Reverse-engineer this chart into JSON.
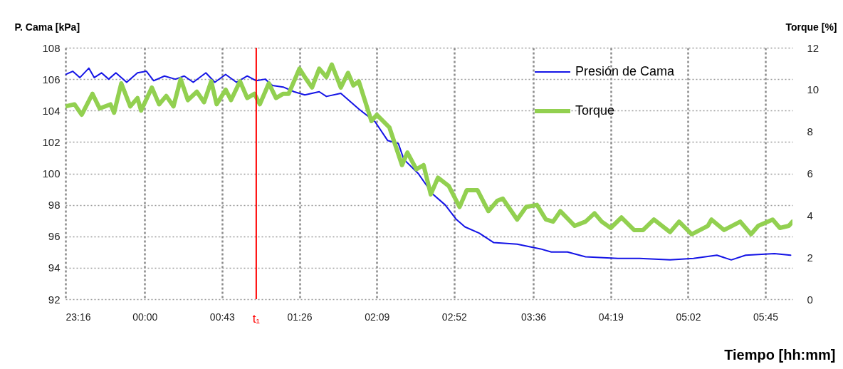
{
  "chart_data": {
    "type": "line",
    "xlabel": "Tiempo [hh:mm]",
    "ylabel": "P. Cama [kPa]",
    "y2label": "Torque [%]",
    "xlim": [
      "2000-01-01T23:16",
      "2000-01-02T06:00"
    ],
    "xticks": [
      {
        "value": "2000-01-01T23:16",
        "label": "23:16"
      },
      {
        "value": "2000-01-02T00:00",
        "label": "00:00"
      },
      {
        "value": "2000-01-02T00:43",
        "label": "00:43"
      },
      {
        "value": "2000-01-02T01:26",
        "label": "01:26"
      },
      {
        "value": "2000-01-02T02:09",
        "label": "02:09"
      },
      {
        "value": "2000-01-02T02:52",
        "label": "02:52"
      },
      {
        "value": "2000-01-02T03:36",
        "label": "03:36"
      },
      {
        "value": "2000-01-02T04:19",
        "label": "04:19"
      },
      {
        "value": "2000-01-02T05:02",
        "label": "05:02"
      },
      {
        "value": "2000-01-02T05:45",
        "label": "05:45"
      }
    ],
    "ylim": [
      92,
      108
    ],
    "yticks": [
      92,
      94,
      96,
      98,
      100,
      102,
      104,
      106,
      108
    ],
    "y2lim": [
      0,
      12
    ],
    "y2ticks": [
      0,
      2,
      4,
      6,
      8,
      10,
      12
    ],
    "grid": true,
    "legend": "top right",
    "line_style": "solid",
    "ref_lines": [
      {
        "axis": "x",
        "value": "2000-01-02T01:02",
        "label": "t₁",
        "color": "#ff0000"
      }
    ],
    "series": [
      {
        "name": "Presión de Cama",
        "color": "#1414e6",
        "x": [
          "2000-01-01T23:16",
          "2000-01-01T23:20",
          "2000-01-01T23:24",
          "2000-01-01T23:29",
          "2000-01-01T23:32",
          "2000-01-01T23:36",
          "2000-01-01T23:40",
          "2000-01-01T23:44",
          "2000-01-01T23:50",
          "2000-01-01T23:56",
          "2000-01-02T00:01",
          "2000-01-02T00:05",
          "2000-01-02T00:11",
          "2000-01-02T00:17",
          "2000-01-02T00:22",
          "2000-01-02T00:27",
          "2000-01-02T00:34",
          "2000-01-02T00:39",
          "2000-01-02T00:45",
          "2000-01-02T00:51",
          "2000-01-02T00:57",
          "2000-01-02T01:02",
          "2000-01-02T01:07",
          "2000-01-02T01:11",
          "2000-01-02T01:17",
          "2000-01-02T01:23",
          "2000-01-02T01:26",
          "2000-01-02T01:29",
          "2000-01-02T01:37",
          "2000-01-02T01:41",
          "2000-01-02T01:49",
          "2000-01-02T01:59",
          "2000-01-02T02:08",
          "2000-01-02T02:15",
          "2000-01-02T02:21",
          "2000-01-02T02:24",
          "2000-01-02T02:32",
          "2000-01-02T02:40",
          "2000-01-02T02:47",
          "2000-01-02T02:53",
          "2000-01-02T02:58",
          "2000-01-02T03:06",
          "2000-01-02T03:14",
          "2000-01-02T03:27",
          "2000-01-02T03:40",
          "2000-01-02T03:46",
          "2000-01-02T03:55",
          "2000-01-02T04:05",
          "2000-01-02T04:23",
          "2000-01-02T04:35",
          "2000-01-02T04:52",
          "2000-01-02T05:05",
          "2000-01-02T05:18",
          "2000-01-02T05:26",
          "2000-01-02T05:34",
          "2000-01-02T05:50",
          "2000-01-02T05:59"
        ],
        "values": [
          106.3,
          106.5,
          106.1,
          106.7,
          106.1,
          106.4,
          106.0,
          106.4,
          105.8,
          106.4,
          106.5,
          105.9,
          106.2,
          106.0,
          106.2,
          105.8,
          106.4,
          105.8,
          106.3,
          105.8,
          106.2,
          105.9,
          106.0,
          105.6,
          105.5,
          105.2,
          105.1,
          105.0,
          105.2,
          104.9,
          105.1,
          104.1,
          103.3,
          102.1,
          101.9,
          100.9,
          100.0,
          98.7,
          98.0,
          97.1,
          96.6,
          96.2,
          95.6,
          95.5,
          95.2,
          95.0,
          95.0,
          94.7,
          94.6,
          94.6,
          94.5,
          94.6,
          94.8,
          94.5,
          94.8,
          94.9,
          94.8
        ]
      },
      {
        "name": "Torque",
        "color": "#92d050",
        "axis": "y2",
        "x": [
          "2000-01-01T23:16",
          "2000-01-01T23:21",
          "2000-01-01T23:25",
          "2000-01-01T23:31",
          "2000-01-01T23:35",
          "2000-01-01T23:41",
          "2000-01-01T23:43",
          "2000-01-01T23:47",
          "2000-01-01T23:52",
          "2000-01-01T23:56",
          "2000-01-01T23:58",
          "2000-01-02T00:04",
          "2000-01-02T00:08",
          "2000-01-02T00:12",
          "2000-01-02T00:16",
          "2000-01-02T00:20",
          "2000-01-02T00:24",
          "2000-01-02T00:29",
          "2000-01-02T00:33",
          "2000-01-02T00:37",
          "2000-01-02T00:40",
          "2000-01-02T00:45",
          "2000-01-02T00:48",
          "2000-01-02T00:53",
          "2000-01-02T00:57",
          "2000-01-02T01:01",
          "2000-01-02T01:04",
          "2000-01-02T01:09",
          "2000-01-02T01:13",
          "2000-01-02T01:17",
          "2000-01-02T01:20",
          "2000-01-02T01:26",
          "2000-01-02T01:29",
          "2000-01-02T01:33",
          "2000-01-02T01:37",
          "2000-01-02T01:41",
          "2000-01-02T01:44",
          "2000-01-02T01:49",
          "2000-01-02T01:53",
          "2000-01-02T01:56",
          "2000-01-02T01:59",
          "2000-01-02T02:06",
          "2000-01-02T02:09",
          "2000-01-02T02:16",
          "2000-01-02T02:23",
          "2000-01-02T02:26",
          "2000-01-02T02:31",
          "2000-01-02T02:35",
          "2000-01-02T02:39",
          "2000-01-02T02:43",
          "2000-01-02T02:49",
          "2000-01-02T02:55",
          "2000-01-02T02:59",
          "2000-01-02T03:05",
          "2000-01-02T03:11",
          "2000-01-02T03:16",
          "2000-01-02T03:19",
          "2000-01-02T03:27",
          "2000-01-02T03:32",
          "2000-01-02T03:38",
          "2000-01-02T03:43",
          "2000-01-02T03:47",
          "2000-01-02T03:51",
          "2000-01-02T03:59",
          "2000-01-02T04:05",
          "2000-01-02T04:10",
          "2000-01-02T04:14",
          "2000-01-02T04:19",
          "2000-01-02T04:25",
          "2000-01-02T04:32",
          "2000-01-02T04:37",
          "2000-01-02T04:43",
          "2000-01-02T04:52",
          "2000-01-02T04:57",
          "2000-01-02T05:04",
          "2000-01-02T05:13",
          "2000-01-02T05:15",
          "2000-01-02T05:22",
          "2000-01-02T05:31",
          "2000-01-02T05:37",
          "2000-01-02T05:41",
          "2000-01-02T05:49",
          "2000-01-02T05:53",
          "2000-01-02T05:58",
          "2000-01-02T06:00"
        ],
        "values": [
          9.2,
          9.3,
          8.8,
          9.8,
          9.1,
          9.3,
          8.9,
          10.3,
          9.2,
          9.6,
          9.0,
          10.1,
          9.3,
          9.7,
          9.2,
          10.5,
          9.5,
          9.9,
          9.4,
          10.4,
          9.3,
          10.0,
          9.5,
          10.4,
          9.6,
          9.8,
          9.3,
          10.3,
          9.6,
          9.8,
          9.8,
          11.0,
          10.6,
          10.1,
          11.0,
          10.6,
          11.2,
          10.1,
          10.8,
          10.2,
          10.4,
          8.5,
          8.8,
          8.2,
          6.4,
          7.0,
          6.2,
          6.4,
          5.0,
          5.8,
          5.4,
          4.4,
          5.2,
          5.2,
          4.2,
          4.7,
          4.8,
          3.8,
          4.4,
          4.5,
          3.8,
          3.7,
          4.2,
          3.5,
          3.7,
          4.1,
          3.7,
          3.4,
          3.9,
          3.3,
          3.3,
          3.8,
          3.2,
          3.7,
          3.1,
          3.5,
          3.8,
          3.3,
          3.7,
          3.1,
          3.5,
          3.8,
          3.4,
          3.5,
          3.7
        ]
      }
    ]
  }
}
